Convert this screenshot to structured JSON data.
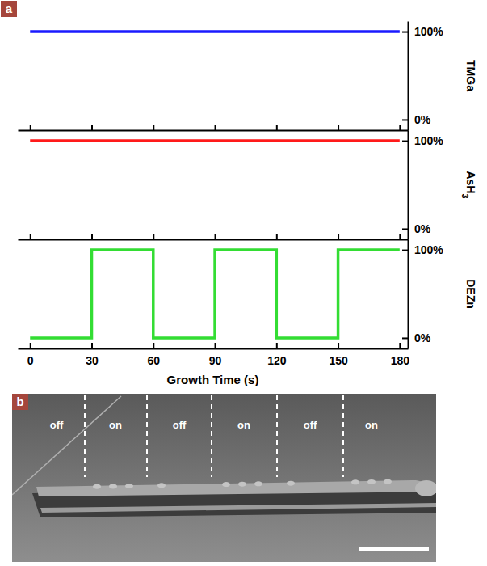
{
  "chart_data": [
    {
      "type": "line",
      "panel_label": "a",
      "ylabel": "TMGa",
      "x": [
        0,
        180
      ],
      "values": [
        100,
        100
      ],
      "color": "#1a1aff",
      "xlim": [
        -6,
        184
      ],
      "xticks": [
        0,
        30,
        60,
        90,
        120,
        150,
        180
      ],
      "ylim": [
        -12,
        112
      ],
      "yticks": [
        {
          "value": 0,
          "label": "0%"
        },
        {
          "value": 100,
          "label": "100%"
        }
      ],
      "tick_labels": "y"
    },
    {
      "type": "line",
      "ylabel": "AsH3",
      "x": [
        0,
        180
      ],
      "values": [
        100,
        100
      ],
      "color": "#ff1a1a",
      "xlim": [
        -6,
        184
      ],
      "xticks": [
        0,
        30,
        60,
        90,
        120,
        150,
        180
      ],
      "ylim": [
        -12,
        112
      ],
      "yticks": [
        {
          "value": 0,
          "label": "0%"
        },
        {
          "value": 100,
          "label": "100%"
        }
      ],
      "tick_labels": "y"
    },
    {
      "type": "line",
      "ylabel": "DEZn",
      "xlabel": "Growth Time (s)",
      "x": [
        0,
        30,
        30,
        60,
        60,
        90,
        90,
        120,
        120,
        150,
        150,
        180
      ],
      "values": [
        0,
        0,
        100,
        100,
        0,
        0,
        100,
        100,
        0,
        0,
        100,
        100
      ],
      "color": "#33dd33",
      "xlim": [
        -6,
        184
      ],
      "xticks": [
        0,
        30,
        60,
        90,
        120,
        150,
        180
      ],
      "ylim": [
        -12,
        112
      ],
      "yticks": [
        {
          "value": 0,
          "label": "0%"
        },
        {
          "value": 100,
          "label": "100%"
        }
      ]
    },
    {
      "type": "image",
      "panel_label": "b",
      "annotations": [
        "off",
        "on",
        "off",
        "on",
        "off",
        "on"
      ]
    }
  ]
}
